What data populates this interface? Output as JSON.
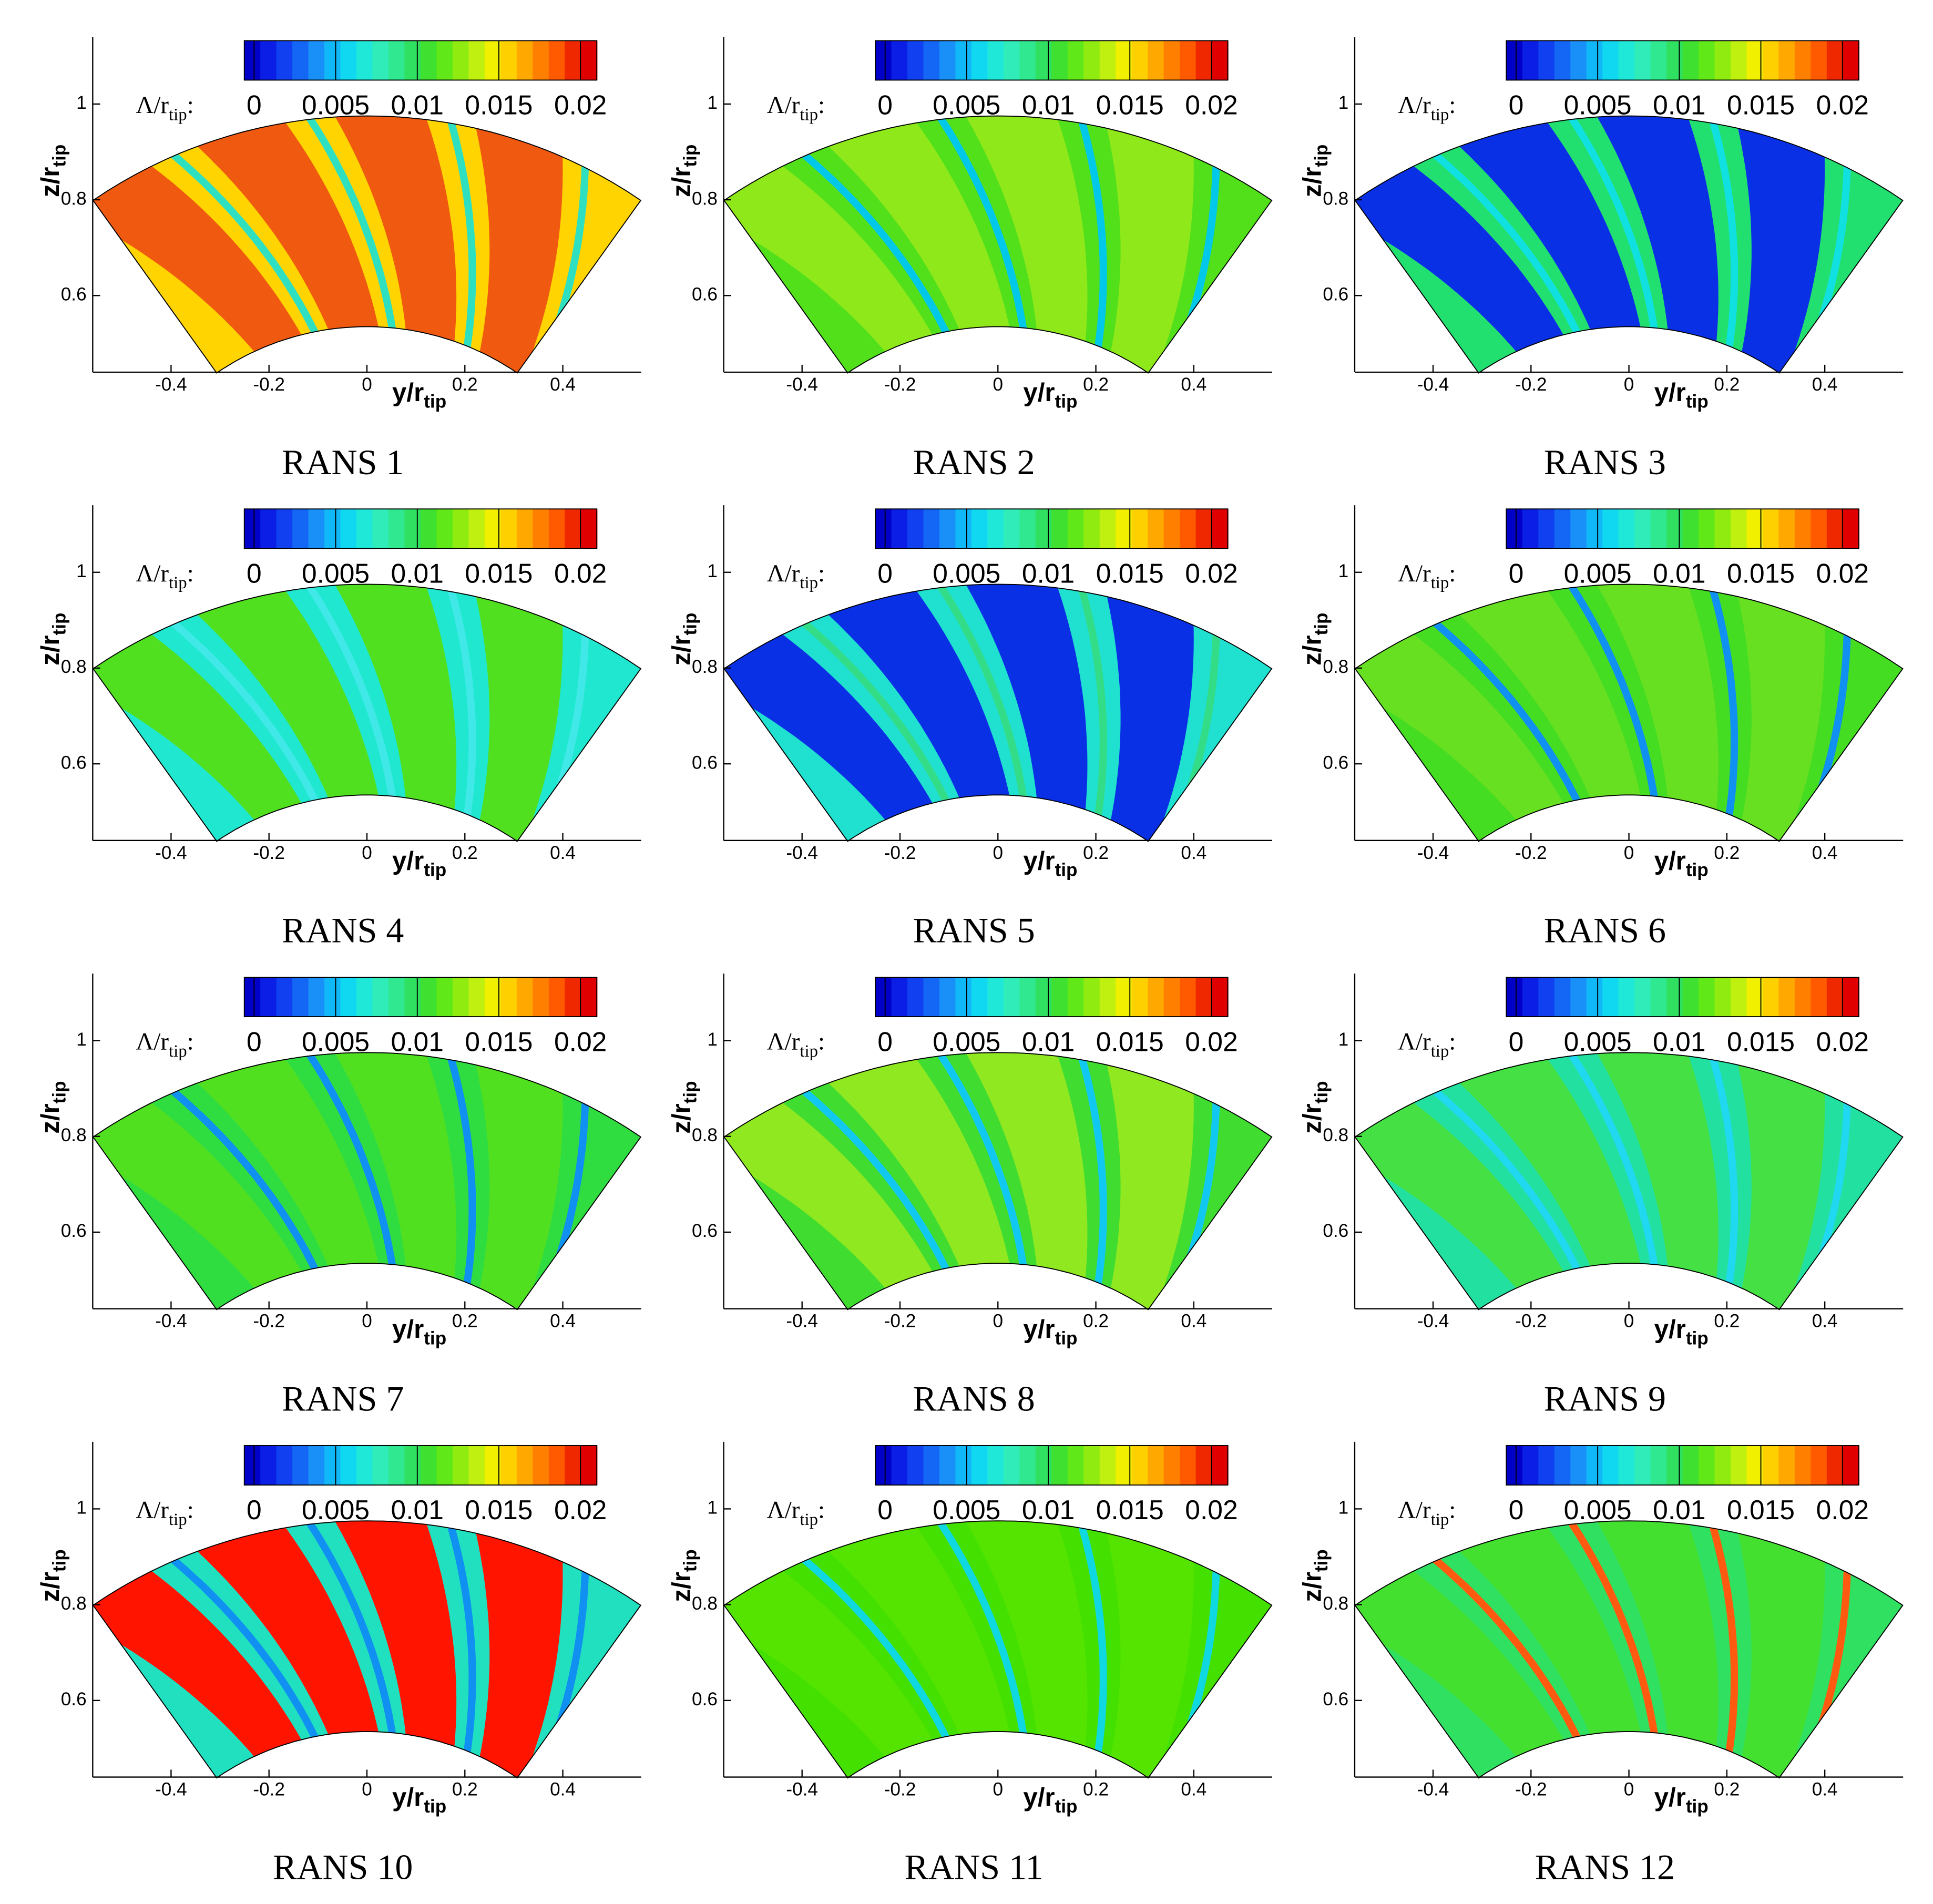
{
  "colormap": [
    "#0000c8",
    "#0a1ee6",
    "#1040f0",
    "#1466f5",
    "#1890f8",
    "#10b8f8",
    "#10d8f0",
    "#20e8d8",
    "#30ecb8",
    "#30e890",
    "#30e060",
    "#40e030",
    "#60e818",
    "#90ec10",
    "#c0f010",
    "#f0f000",
    "#ffd000",
    "#ffa800",
    "#ff8000",
    "#ff5a00",
    "#f02800",
    "#e00000"
  ],
  "chart_data": [
    {
      "type": "contour",
      "title": "RANS 1",
      "xlabel": "y/r",
      "xlabel_sub": "tip",
      "ylabel": "z/r",
      "ylabel_sub": "tip",
      "colorbar_label": "Λ/r",
      "colorbar_label_sub": "tip",
      "colorbar_label_end": ":",
      "xlim": [
        -0.56,
        0.56
      ],
      "xticks": [
        -0.4,
        -0.2,
        0,
        0.2,
        0.4
      ],
      "ylim": [
        0.44,
        1.14
      ],
      "yticks": [
        0.6,
        0.8,
        1
      ],
      "clim": [
        -0.0006,
        0.021
      ],
      "cticks": [
        0,
        0.005,
        0.01,
        0.015,
        0.02
      ],
      "field_colors": [
        "#ffd400",
        "#f05a10",
        "#2ee0c0"
      ]
    },
    {
      "type": "contour",
      "title": "RANS 2",
      "xlabel": "y/r",
      "xlabel_sub": "tip",
      "ylabel": "z/r",
      "ylabel_sub": "tip",
      "colorbar_label": "Λ/r",
      "colorbar_label_sub": "tip",
      "colorbar_label_end": ":",
      "xlim": [
        -0.56,
        0.56
      ],
      "xticks": [
        -0.4,
        -0.2,
        0,
        0.2,
        0.4
      ],
      "ylim": [
        0.44,
        1.14
      ],
      "yticks": [
        0.6,
        0.8,
        1
      ],
      "clim": [
        -0.0006,
        0.021
      ],
      "cticks": [
        0,
        0.005,
        0.01,
        0.015,
        0.02
      ],
      "field_colors": [
        "#52e01a",
        "#8fe81a",
        "#00c8e8"
      ]
    },
    {
      "type": "contour",
      "title": "RANS 3",
      "xlabel": "y/r",
      "xlabel_sub": "tip",
      "ylabel": "z/r",
      "ylabel_sub": "tip",
      "colorbar_label": "Λ/r",
      "colorbar_label_sub": "tip",
      "colorbar_label_end": ":",
      "xlim": [
        -0.56,
        0.56
      ],
      "xticks": [
        -0.4,
        -0.2,
        0,
        0.2,
        0.4
      ],
      "ylim": [
        0.44,
        1.14
      ],
      "yticks": [
        0.6,
        0.8,
        1
      ],
      "clim": [
        -0.0006,
        0.021
      ],
      "cticks": [
        0,
        0.005,
        0.01,
        0.015,
        0.02
      ],
      "field_colors": [
        "#22e070",
        "#0a30e6",
        "#10e0e0"
      ]
    },
    {
      "type": "contour",
      "title": "RANS 4",
      "xlabel": "y/r",
      "xlabel_sub": "tip",
      "ylabel": "z/r",
      "ylabel_sub": "tip",
      "colorbar_label": "Λ/r",
      "colorbar_label_sub": "tip",
      "colorbar_label_end": ":",
      "xlim": [
        -0.56,
        0.56
      ],
      "xticks": [
        -0.4,
        -0.2,
        0,
        0.2,
        0.4
      ],
      "ylim": [
        0.44,
        1.14
      ],
      "yticks": [
        0.6,
        0.8,
        1
      ],
      "clim": [
        -0.0006,
        0.021
      ],
      "cticks": [
        0,
        0.005,
        0.01,
        0.015,
        0.02
      ],
      "field_colors": [
        "#20e8d0",
        "#50e020",
        "#40e8e8"
      ]
    },
    {
      "type": "contour",
      "title": "RANS 5",
      "xlabel": "y/r",
      "xlabel_sub": "tip",
      "ylabel": "z/r",
      "ylabel_sub": "tip",
      "colorbar_label": "Λ/r",
      "colorbar_label_sub": "tip",
      "colorbar_label_end": ":",
      "xlim": [
        -0.56,
        0.56
      ],
      "xticks": [
        -0.4,
        -0.2,
        0,
        0.2,
        0.4
      ],
      "ylim": [
        0.44,
        1.14
      ],
      "yticks": [
        0.6,
        0.8,
        1
      ],
      "clim": [
        -0.0006,
        0.021
      ],
      "cticks": [
        0,
        0.005,
        0.01,
        0.015,
        0.02
      ],
      "field_colors": [
        "#20e0d0",
        "#0a30e6",
        "#33dd88"
      ]
    },
    {
      "type": "contour",
      "title": "RANS 6",
      "xlabel": "y/r",
      "xlabel_sub": "tip",
      "ylabel": "z/r",
      "ylabel_sub": "tip",
      "colorbar_label": "Λ/r",
      "colorbar_label_sub": "tip",
      "colorbar_label_end": ":",
      "xlim": [
        -0.56,
        0.56
      ],
      "xticks": [
        -0.4,
        -0.2,
        0,
        0.2,
        0.4
      ],
      "ylim": [
        0.44,
        1.14
      ],
      "yticks": [
        0.6,
        0.8,
        1
      ],
      "clim": [
        -0.0006,
        0.021
      ],
      "cticks": [
        0,
        0.005,
        0.01,
        0.015,
        0.02
      ],
      "field_colors": [
        "#44dd22",
        "#66e020",
        "#1090f0"
      ]
    },
    {
      "type": "contour",
      "title": "RANS 7",
      "xlabel": "y/r",
      "xlabel_sub": "tip",
      "ylabel": "z/r",
      "ylabel_sub": "tip",
      "colorbar_label": "Λ/r",
      "colorbar_label_sub": "tip",
      "colorbar_label_end": ":",
      "xlim": [
        -0.56,
        0.56
      ],
      "xticks": [
        -0.4,
        -0.2,
        0,
        0.2,
        0.4
      ],
      "ylim": [
        0.44,
        1.14
      ],
      "yticks": [
        0.6,
        0.8,
        1
      ],
      "clim": [
        -0.0006,
        0.021
      ],
      "cticks": [
        0,
        0.005,
        0.01,
        0.015,
        0.02
      ],
      "field_colors": [
        "#30dd40",
        "#50e020",
        "#1090f0"
      ]
    },
    {
      "type": "contour",
      "title": "RANS 8",
      "xlabel": "y/r",
      "xlabel_sub": "tip",
      "ylabel": "z/r",
      "ylabel_sub": "tip",
      "colorbar_label": "Λ/r",
      "colorbar_label_sub": "tip",
      "colorbar_label_end": ":",
      "xlim": [
        -0.56,
        0.56
      ],
      "xticks": [
        -0.4,
        -0.2,
        0,
        0.2,
        0.4
      ],
      "ylim": [
        0.44,
        1.14
      ],
      "yticks": [
        0.6,
        0.8,
        1
      ],
      "clim": [
        -0.0006,
        0.021
      ],
      "cticks": [
        0,
        0.005,
        0.01,
        0.015,
        0.02
      ],
      "field_colors": [
        "#40dd30",
        "#90e820",
        "#10c8f0"
      ]
    },
    {
      "type": "contour",
      "title": "RANS 9",
      "xlabel": "y/r",
      "xlabel_sub": "tip",
      "ylabel": "z/r",
      "ylabel_sub": "tip",
      "colorbar_label": "Λ/r",
      "colorbar_label_sub": "tip",
      "colorbar_label_end": ":",
      "xlim": [
        -0.56,
        0.56
      ],
      "xticks": [
        -0.4,
        -0.2,
        0,
        0.2,
        0.4
      ],
      "ylim": [
        0.44,
        1.14
      ],
      "yticks": [
        0.6,
        0.8,
        1
      ],
      "clim": [
        -0.0006,
        0.021
      ],
      "cticks": [
        0,
        0.005,
        0.01,
        0.015,
        0.02
      ],
      "field_colors": [
        "#22e0a0",
        "#44e044",
        "#20d8f0"
      ]
    },
    {
      "type": "contour",
      "title": "RANS 10",
      "xlabel": "y/r",
      "xlabel_sub": "tip",
      "ylabel": "z/r",
      "ylabel_sub": "tip",
      "colorbar_label": "Λ/r",
      "colorbar_label_sub": "tip",
      "colorbar_label_end": ":",
      "xlim": [
        -0.56,
        0.56
      ],
      "xticks": [
        -0.4,
        -0.2,
        0,
        0.2,
        0.4
      ],
      "ylim": [
        0.44,
        1.14
      ],
      "yticks": [
        0.6,
        0.8,
        1
      ],
      "clim": [
        -0.0006,
        0.021
      ],
      "cticks": [
        0,
        0.005,
        0.01,
        0.015,
        0.02
      ],
      "field_colors": [
        "#20e0c0",
        "#ff1400",
        "#1090f0"
      ]
    },
    {
      "type": "contour",
      "title": "RANS 11",
      "xlabel": "y/r",
      "xlabel_sub": "tip",
      "ylabel": "z/r",
      "ylabel_sub": "tip",
      "colorbar_label": "Λ/r",
      "colorbar_label_sub": "tip",
      "colorbar_label_end": ":",
      "xlim": [
        -0.56,
        0.56
      ],
      "xticks": [
        -0.4,
        -0.2,
        0,
        0.2,
        0.4
      ],
      "ylim": [
        0.44,
        1.14
      ],
      "yticks": [
        0.6,
        0.8,
        1
      ],
      "clim": [
        -0.0006,
        0.021
      ],
      "cticks": [
        0,
        0.005,
        0.01,
        0.015,
        0.02
      ],
      "field_colors": [
        "#44e000",
        "#55e400",
        "#10d8e0"
      ]
    },
    {
      "type": "contour",
      "title": "RANS 12",
      "xlabel": "y/r",
      "xlabel_sub": "tip",
      "ylabel": "z/r",
      "ylabel_sub": "tip",
      "colorbar_label": "Λ/r",
      "colorbar_label_sub": "tip",
      "colorbar_label_end": ":",
      "xlim": [
        -0.56,
        0.56
      ],
      "xticks": [
        -0.4,
        -0.2,
        0,
        0.2,
        0.4
      ],
      "ylim": [
        0.44,
        1.14
      ],
      "yticks": [
        0.6,
        0.8,
        1
      ],
      "clim": [
        -0.0006,
        0.021
      ],
      "cticks": [
        0,
        0.005,
        0.01,
        0.015,
        0.02
      ],
      "field_colors": [
        "#30e060",
        "#44e030",
        "#ff5a10"
      ]
    }
  ]
}
